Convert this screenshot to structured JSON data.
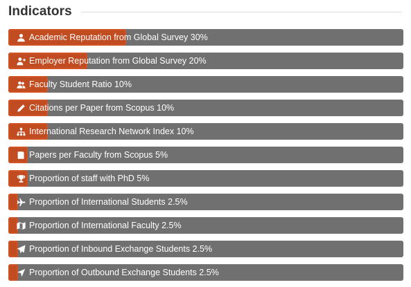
{
  "header": {
    "title": "Indicators"
  },
  "indicators": [
    {
      "label": "Academic Reputation from Global Survey 30%",
      "icon": "user-icon",
      "weight": 30
    },
    {
      "label": "Employer Reputation from Global Survey 20%",
      "icon": "user-plus-icon",
      "weight": 20
    },
    {
      "label": "Faculty Student Ratio 10%",
      "icon": "users-icon",
      "weight": 10
    },
    {
      "label": "Citations per Paper from Scopus 10%",
      "icon": "pencil-icon",
      "weight": 10
    },
    {
      "label": "International Research Network Index 10%",
      "icon": "network-icon",
      "weight": 10
    },
    {
      "label": "Papers per Faculty from Scopus 5%",
      "icon": "book-icon",
      "weight": 5
    },
    {
      "label": "Proportion of staff with PhD 5%",
      "icon": "trophy-icon",
      "weight": 5
    },
    {
      "label": "Proportion of International Students 2.5%",
      "icon": "plane-icon",
      "weight": 2.5
    },
    {
      "label": "Proportion of International Faculty 2.5%",
      "icon": "map-icon",
      "weight": 2.5
    },
    {
      "label": "Proportion of Inbound Exchange Students 2.5%",
      "icon": "send-icon",
      "weight": 2.5
    },
    {
      "label": "Proportion of Outbound Exchange Students 2.5%",
      "icon": "location-arrow-icon",
      "weight": 2.5
    }
  ],
  "colors": {
    "bar_background": "#707070",
    "bar_fill": "#c94a1c",
    "text": "#ffffff"
  }
}
